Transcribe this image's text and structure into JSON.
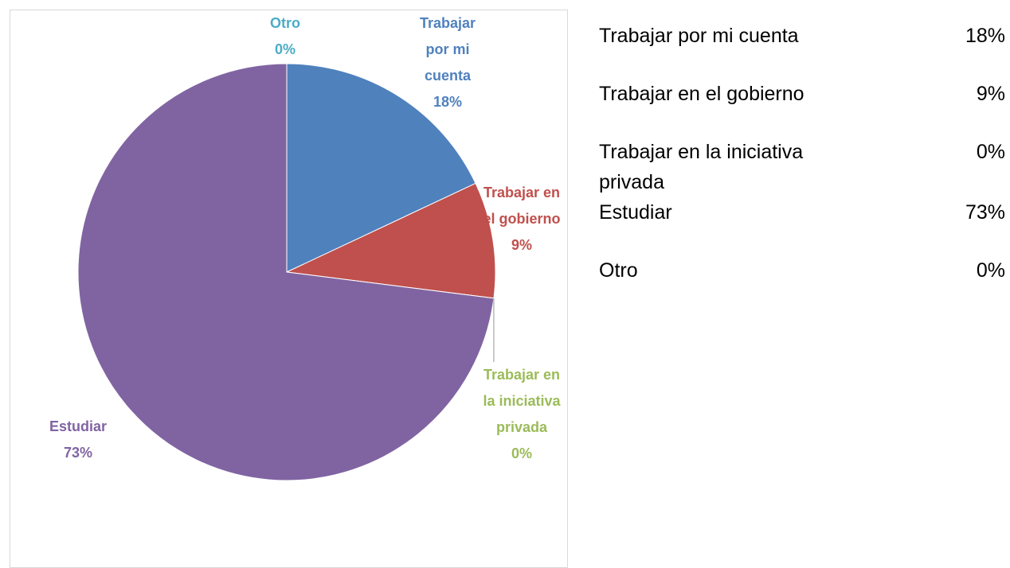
{
  "chart_data": {
    "type": "pie",
    "categories": [
      "Trabajar por mi cuenta",
      "Trabajar en el gobierno",
      "Trabajar en la iniciativa privada",
      "Estudiar",
      "Otro"
    ],
    "values": [
      18,
      9,
      0,
      73,
      0
    ],
    "value_labels": [
      "18%",
      "9%",
      "0%",
      "73%",
      "0%"
    ],
    "colors": [
      "#4f81bd",
      "#c0504d",
      "#9bbb59",
      "#8064a2",
      "#4bacc6"
    ]
  }
}
